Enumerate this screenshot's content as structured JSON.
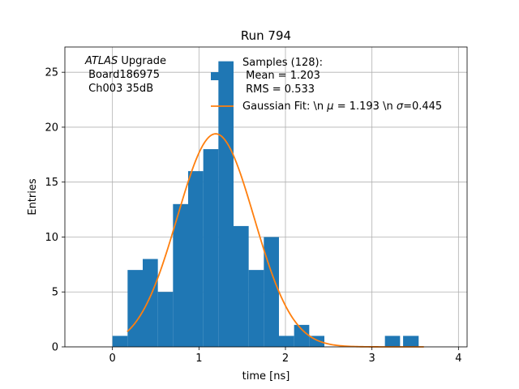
{
  "chart_data": {
    "type": "bar",
    "title": "Run 794",
    "xlabel": "time [ns]",
    "ylabel": "Entries",
    "xlim": [
      -0.55,
      4.1
    ],
    "ylim": [
      0,
      27.3
    ],
    "xticks": [
      0,
      1,
      2,
      3,
      4
    ],
    "yticks": [
      0,
      5,
      10,
      15,
      20,
      25
    ],
    "grid": true,
    "bin_width": 0.175,
    "bin_starts": [
      0.0,
      0.175,
      0.35,
      0.525,
      0.7,
      0.875,
      1.05,
      1.225,
      1.4,
      1.575,
      1.75,
      1.925,
      2.1,
      2.275,
      2.45,
      2.625,
      2.8,
      2.975,
      3.15,
      3.325
    ],
    "values": [
      1,
      7,
      8,
      5,
      13,
      16,
      18,
      26,
      11,
      7,
      10,
      1,
      2,
      1,
      0,
      0,
      0,
      0,
      1,
      0
    ],
    "extra_bins": [
      {
        "start": 3.36,
        "end": 3.54,
        "value": 1
      }
    ],
    "fit": {
      "label_parts": [
        "Gaussian Fit: \\n ",
        "μ",
        " = 1.193 \\n ",
        "σ",
        "=0.445"
      ],
      "mu": 1.193,
      "sigma": 0.445,
      "amplitude": 19.4,
      "x_range": [
        0.17,
        3.6
      ],
      "color": "#ff7f0e"
    },
    "series": [
      {
        "name": "Samples (128):",
        "color": "#1f77b4",
        "lines": [
          " Mean = 1.203",
          " RMS = 0.533"
        ]
      }
    ],
    "annotation": {
      "italic": "ATLAS",
      "rest": " Upgrade",
      "lines": [
        " Board186975",
        " Ch003 35dB"
      ]
    },
    "legend_position": "top-right"
  }
}
